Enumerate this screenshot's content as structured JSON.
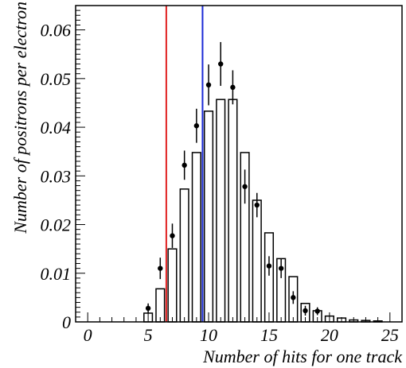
{
  "chart_data": {
    "type": "bar",
    "xlabel": "Number of hits for one track",
    "ylabel": "Number of positrons per electron",
    "xlim": [
      -1,
      26
    ],
    "ylim": [
      0,
      0.065
    ],
    "x_ticks": [
      0,
      5,
      10,
      15,
      20,
      25
    ],
    "x_tick_labels": [
      "0",
      "5",
      "10",
      "15",
      "20",
      "25"
    ],
    "y_ticks": [
      0,
      0.01,
      0.02,
      0.03,
      0.04,
      0.05,
      0.06
    ],
    "y_tick_labels": [
      "0",
      "0.01",
      "0.02",
      "0.03",
      "0.04",
      "0.05",
      "0.06"
    ],
    "grid": false,
    "histogram": {
      "bin_centers": [
        5,
        6,
        7,
        8,
        9,
        10,
        11,
        12,
        13,
        14,
        15,
        16,
        17,
        18,
        19,
        20,
        21,
        22,
        23,
        24
      ],
      "values": [
        0.0018,
        0.0068,
        0.015,
        0.0273,
        0.0348,
        0.0433,
        0.0457,
        0.0457,
        0.0348,
        0.025,
        0.0183,
        0.013,
        0.0093,
        0.0038,
        0.0023,
        0.0012,
        0.0008,
        0.0004,
        0.0003,
        0.0002
      ]
    },
    "points": {
      "x": [
        5,
        6,
        7,
        8,
        9,
        10,
        11,
        12,
        13,
        14,
        15,
        16,
        17,
        18,
        19
      ],
      "y": [
        0.0028,
        0.011,
        0.0177,
        0.0322,
        0.0403,
        0.0487,
        0.053,
        0.0482,
        0.0278,
        0.024,
        0.0115,
        0.011,
        0.005,
        0.0023,
        0.0022
      ],
      "err": [
        0.001,
        0.0022,
        0.0025,
        0.003,
        0.0035,
        0.0042,
        0.0045,
        0.0035,
        0.0035,
        0.0025,
        0.002,
        0.002,
        0.0013,
        0.001,
        0.0008
      ]
    },
    "vertical_lines": [
      {
        "x": 6.5,
        "color": "#e02020"
      },
      {
        "x": 9.5,
        "color": "#1a2ad6"
      }
    ]
  }
}
